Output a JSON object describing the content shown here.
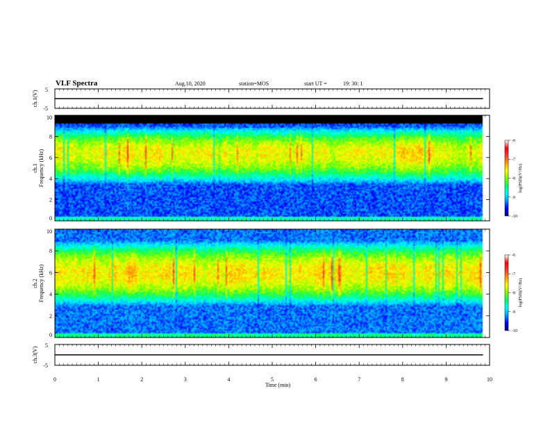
{
  "header": {
    "title": "VLF Spectra",
    "date": "Aug.10, 2020",
    "station": "station=MOS",
    "start_label": "start  UT  =",
    "start_time": "19: 30: 1"
  },
  "colors": {
    "scale": [
      "#000080",
      "#0000ff",
      "#00a0ff",
      "#00ffff",
      "#00ff66",
      "#80ff00",
      "#ffff00",
      "#ffa000",
      "#ff3c3c",
      "#ff0000",
      "#ffffff"
    ],
    "saturated": "#000000",
    "trace": "#000000"
  },
  "chart_data": [
    {
      "type": "line",
      "name": "ch1-waveform",
      "ylabel": "ch.1(V)",
      "ylim": [
        -5,
        5
      ],
      "yticks": [
        "5",
        "-5"
      ],
      "x": [
        0,
        9.85
      ],
      "y": [
        0,
        0
      ]
    },
    {
      "type": "heatmap",
      "name": "ch1-spectrogram",
      "ylabel": "ch.1\nFrequency (kHz)",
      "ylim": [
        0,
        10
      ],
      "yticks": [
        "0",
        "2",
        "4",
        "6",
        "8",
        "10"
      ],
      "xlim": [
        0,
        10
      ],
      "data_end_min": 9.85,
      "band_peak_khz": 6.5,
      "band_low_khz": 3.5,
      "band_high_khz": 9.0,
      "band_peak_level": -7.0,
      "background_level": -9.4,
      "saturated_above_khz": 9.3,
      "colorbar": {
        "label": "log(PSD)(V²/Hz)",
        "range": [
          -10,
          -6
        ],
        "ticks": [
          "-6",
          "-7",
          "-8",
          "-9",
          "-10"
        ]
      }
    },
    {
      "type": "heatmap",
      "name": "ch2-spectrogram",
      "ylabel": "ch.2\nFrequency (kHz)",
      "ylim": [
        0,
        10
      ],
      "yticks": [
        "0",
        "2",
        "4",
        "6",
        "8",
        "10"
      ],
      "xlim": [
        0,
        10
      ],
      "data_end_min": 9.85,
      "band_peak_khz": 6.0,
      "band_low_khz": 3.0,
      "band_high_khz": 9.0,
      "band_peak_level": -6.9,
      "background_level": -9.3,
      "colorbar": {
        "label": "log(PSD)(V²/Hz)",
        "range": [
          -10,
          -6
        ],
        "ticks": [
          "-6",
          "-7",
          "-8",
          "-9",
          "-10"
        ]
      }
    },
    {
      "type": "line",
      "name": "ch3-waveform",
      "ylabel": "ch.3(V)",
      "ylim": [
        -5,
        5
      ],
      "yticks": [
        "5",
        "-5"
      ],
      "x": [
        0,
        9.85
      ],
      "y": [
        0,
        0
      ]
    }
  ],
  "xaxis": {
    "label": "Time  (min)",
    "range": [
      0,
      10
    ],
    "ticks": [
      "0",
      "1",
      "2",
      "3",
      "4",
      "5",
      "6",
      "7",
      "8",
      "9",
      "10"
    ]
  }
}
